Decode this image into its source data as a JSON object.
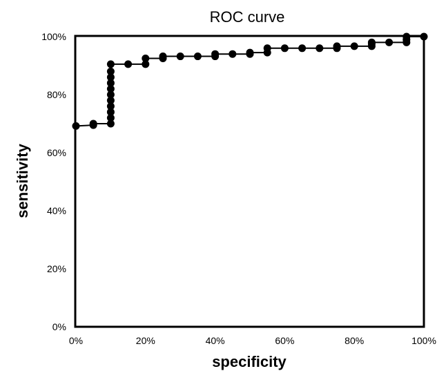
{
  "chart_data": {
    "type": "line",
    "title": "ROC curve",
    "xlabel": "specificity",
    "ylabel": "sensitivity",
    "xlim": [
      0,
      100
    ],
    "ylim": [
      0,
      100
    ],
    "x_ticks": [
      "0%",
      "20%",
      "40%",
      "60%",
      "80%",
      "100%"
    ],
    "y_ticks": [
      "0%",
      "20%",
      "40%",
      "60%",
      "80%",
      "100%"
    ],
    "grid": false,
    "legend": "none",
    "colors": {
      "line": "#000000",
      "marker": "#000000",
      "frame": "#000000"
    },
    "series": [
      {
        "points": [
          [
            0,
            69.2
          ],
          [
            5,
            69.5
          ],
          [
            5,
            70
          ],
          [
            10,
            70
          ],
          [
            10,
            72
          ],
          [
            10,
            74
          ],
          [
            10,
            76
          ],
          [
            10,
            78
          ],
          [
            10,
            80
          ],
          [
            10,
            82
          ],
          [
            10,
            84
          ],
          [
            10,
            86
          ],
          [
            10,
            88
          ],
          [
            10,
            90.5
          ],
          [
            15,
            90.5
          ],
          [
            20,
            90.5
          ],
          [
            20,
            92.5
          ],
          [
            25,
            92.5
          ],
          [
            25,
            93.2
          ],
          [
            30,
            93.2
          ],
          [
            35,
            93.2
          ],
          [
            40,
            93.2
          ],
          [
            40,
            94
          ],
          [
            45,
            94
          ],
          [
            50,
            94
          ],
          [
            50,
            94.5
          ],
          [
            55,
            94.5
          ],
          [
            55,
            96
          ],
          [
            60,
            96
          ],
          [
            65,
            96
          ],
          [
            70,
            96
          ],
          [
            75,
            96
          ],
          [
            75,
            96.7
          ],
          [
            80,
            96.7
          ],
          [
            85,
            96.7
          ],
          [
            85,
            97.5
          ],
          [
            85,
            98
          ],
          [
            90,
            98
          ],
          [
            95,
            98
          ],
          [
            95,
            99
          ],
          [
            95,
            100
          ],
          [
            100,
            100
          ]
        ]
      }
    ]
  }
}
